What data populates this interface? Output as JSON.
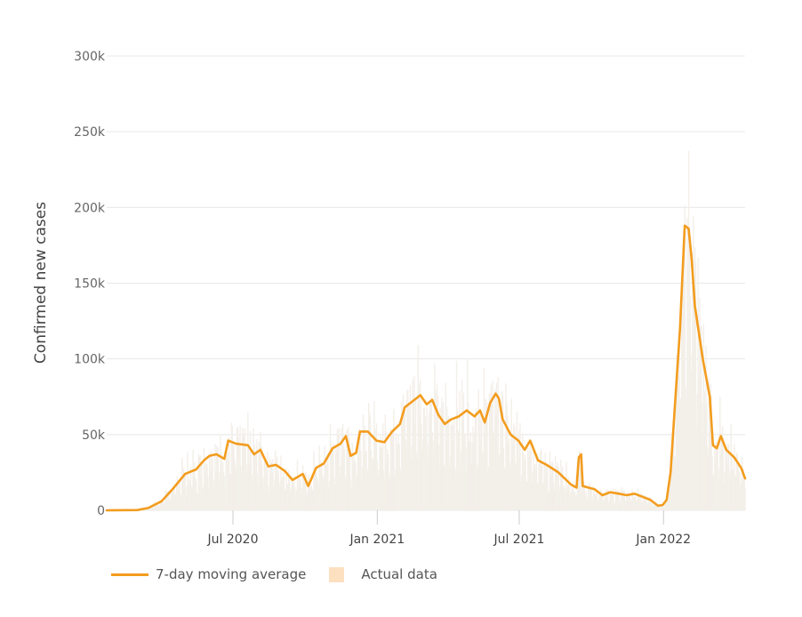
{
  "chart_data": {
    "type": "line",
    "ylabel": "Confirmed new cases",
    "xlabel": "",
    "y_ticks": [
      "0",
      "50k",
      "100k",
      "150k",
      "200k",
      "250k",
      "300k"
    ],
    "ylim": [
      0,
      300000
    ],
    "x_range": [
      "2020-01-22",
      "2022-04-15"
    ],
    "x_ticks": [
      {
        "date": "2020-07-01",
        "label": "Jul 2020"
      },
      {
        "date": "2021-01-01",
        "label": "Jan 2021"
      },
      {
        "date": "2021-07-01",
        "label": "Jul 2021"
      },
      {
        "date": "2022-01-01",
        "label": "Jan 2022"
      }
    ],
    "grid": true,
    "legend_position": "bottom-left",
    "series": [
      {
        "name": "7-day moving average",
        "color": "#f39c1e",
        "points": [
          [
            "2020-01-22",
            0
          ],
          [
            "2020-03-01",
            200
          ],
          [
            "2020-03-15",
            1500
          ],
          [
            "2020-04-01",
            6000
          ],
          [
            "2020-04-15",
            14000
          ],
          [
            "2020-05-01",
            24000
          ],
          [
            "2020-05-15",
            27000
          ],
          [
            "2020-05-25",
            33000
          ],
          [
            "2020-06-01",
            36000
          ],
          [
            "2020-06-10",
            37000
          ],
          [
            "2020-06-20",
            34000
          ],
          [
            "2020-06-25",
            46000
          ],
          [
            "2020-07-05",
            44000
          ],
          [
            "2020-07-20",
            43000
          ],
          [
            "2020-07-28",
            37000
          ],
          [
            "2020-08-05",
            40000
          ],
          [
            "2020-08-15",
            29000
          ],
          [
            "2020-08-25",
            30000
          ],
          [
            "2020-09-05",
            26000
          ],
          [
            "2020-09-15",
            20000
          ],
          [
            "2020-09-28",
            24000
          ],
          [
            "2020-10-05",
            16000
          ],
          [
            "2020-10-15",
            28000
          ],
          [
            "2020-10-25",
            31000
          ],
          [
            "2020-11-05",
            41000
          ],
          [
            "2020-11-15",
            44000
          ],
          [
            "2020-11-22",
            49000
          ],
          [
            "2020-11-28",
            36000
          ],
          [
            "2020-12-05",
            38000
          ],
          [
            "2020-12-10",
            52000
          ],
          [
            "2020-12-20",
            52000
          ],
          [
            "2020-12-31",
            46000
          ],
          [
            "2021-01-10",
            45000
          ],
          [
            "2021-01-20",
            52000
          ],
          [
            "2021-01-30",
            57000
          ],
          [
            "2021-02-05",
            68000
          ],
          [
            "2021-02-15",
            72000
          ],
          [
            "2021-02-25",
            76000
          ],
          [
            "2021-03-05",
            70000
          ],
          [
            "2021-03-12",
            73000
          ],
          [
            "2021-03-20",
            63000
          ],
          [
            "2021-03-28",
            57000
          ],
          [
            "2021-04-05",
            60000
          ],
          [
            "2021-04-15",
            62000
          ],
          [
            "2021-04-25",
            66000
          ],
          [
            "2021-05-05",
            62000
          ],
          [
            "2021-05-12",
            66000
          ],
          [
            "2021-05-18",
            58000
          ],
          [
            "2021-05-25",
            71000
          ],
          [
            "2021-06-01",
            77000
          ],
          [
            "2021-06-05",
            74000
          ],
          [
            "2021-06-10",
            60000
          ],
          [
            "2021-06-20",
            50000
          ],
          [
            "2021-06-30",
            46000
          ],
          [
            "2021-07-08",
            40000
          ],
          [
            "2021-07-15",
            46000
          ],
          [
            "2021-07-25",
            33000
          ],
          [
            "2021-08-05",
            30000
          ],
          [
            "2021-08-20",
            25000
          ],
          [
            "2021-09-05",
            17000
          ],
          [
            "2021-09-12",
            15000
          ],
          [
            "2021-09-15",
            35000
          ],
          [
            "2021-09-18",
            37000
          ],
          [
            "2021-09-20",
            16000
          ],
          [
            "2021-10-05",
            14000
          ],
          [
            "2021-10-15",
            10000
          ],
          [
            "2021-10-25",
            12000
          ],
          [
            "2021-11-05",
            11000
          ],
          [
            "2021-11-15",
            10000
          ],
          [
            "2021-11-25",
            11000
          ],
          [
            "2021-12-05",
            9000
          ],
          [
            "2021-12-15",
            7000
          ],
          [
            "2021-12-25",
            3000
          ],
          [
            "2021-12-31",
            3500
          ],
          [
            "2022-01-05",
            7000
          ],
          [
            "2022-01-10",
            25000
          ],
          [
            "2022-01-15",
            65000
          ],
          [
            "2022-01-22",
            120000
          ],
          [
            "2022-01-28",
            188000
          ],
          [
            "2022-02-02",
            186000
          ],
          [
            "2022-02-06",
            165000
          ],
          [
            "2022-02-10",
            135000
          ],
          [
            "2022-02-20",
            100000
          ],
          [
            "2022-03-01",
            75000
          ],
          [
            "2022-03-05",
            43000
          ],
          [
            "2022-03-10",
            41000
          ],
          [
            "2022-03-15",
            49000
          ],
          [
            "2022-03-22",
            40000
          ],
          [
            "2022-04-01",
            35000
          ],
          [
            "2022-04-10",
            28000
          ],
          [
            "2022-04-15",
            21000
          ]
        ]
      },
      {
        "name": "Actual data",
        "color": "#fde0bf"
      }
    ]
  }
}
